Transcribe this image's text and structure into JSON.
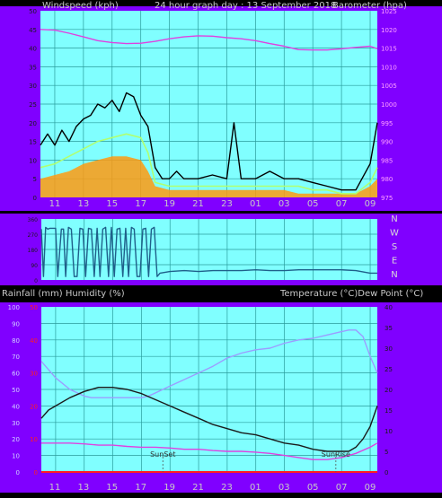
{
  "colors": {
    "background": "#000000",
    "plot_bg": "#80ffff",
    "panel_bg": "#8000ff",
    "grid": "#2a9c9c",
    "gust": "#000000",
    "average_wind": "#b0ff70",
    "wind_fill": "#ff9a10",
    "barometer": "#e040e0",
    "direction": "#1f5f8a",
    "rainfall": "#ff1f1f",
    "humidity": "#9c9cff",
    "temperature": "#1a1a1a",
    "dew_point": "#e040e0"
  },
  "header": {
    "left_title": "Windspeed (kph)",
    "center_title": "24 hour graph day : 13 September 2018",
    "right_title": "Barometer (hpa)"
  },
  "middle_header": {
    "left_title": "Rainfall (mm)  Humidity (%)",
    "right_title": "Temperature (°C)Dew Point (°C)"
  },
  "x_ticks": [
    "11",
    "13",
    "15",
    "17",
    "19",
    "21",
    "23",
    "01",
    "03",
    "05",
    "07",
    "09"
  ],
  "chart_data": [
    {
      "type": "line",
      "x_unit": "hours from start (10:00 13 Sep 2018)",
      "xlim": [
        0,
        23.5
      ],
      "y_left_ticks": [
        "0",
        "5",
        "10",
        "15",
        "20",
        "25",
        "30",
        "35",
        "40",
        "45",
        "50"
      ],
      "y_right_ticks": [
        "975",
        "980",
        "985",
        "990",
        "995",
        "1000",
        "1005",
        "1010",
        "1015",
        "1020",
        "1025"
      ],
      "ylim_left": [
        0,
        50
      ],
      "ylim_right": [
        975,
        1025
      ],
      "series": [
        {
          "role": "gust",
          "x": [
            0,
            0.5,
            1,
            1.5,
            2,
            2.5,
            3,
            3.5,
            4,
            4.5,
            5,
            5.5,
            6,
            6.5,
            7,
            7.5,
            8,
            8.5,
            9,
            9.5,
            10,
            11,
            12,
            13,
            13.5,
            14,
            15,
            16,
            17,
            18,
            19,
            20,
            21,
            22,
            23,
            23.5
          ],
          "y": [
            14,
            17,
            14,
            18,
            15,
            19,
            21,
            22,
            25,
            24,
            26,
            23,
            28,
            27,
            22,
            19,
            8,
            5,
            5,
            7,
            5,
            5,
            6,
            5,
            20,
            5,
            5,
            7,
            5,
            5,
            4,
            3,
            2,
            2,
            9,
            20
          ]
        },
        {
          "role": "average",
          "x": [
            0,
            1,
            2,
            3,
            4,
            5,
            6,
            7,
            7.5,
            8,
            9,
            10,
            11,
            12,
            13,
            14,
            15,
            16,
            17,
            18,
            19,
            20,
            21,
            22,
            23,
            23.5
          ],
          "y": [
            8,
            9,
            11,
            13,
            15,
            16,
            17,
            16,
            12,
            4,
            3,
            3,
            3,
            3,
            3,
            3,
            3,
            3,
            3,
            3,
            2,
            2,
            1,
            1,
            4,
            8
          ]
        },
        {
          "role": "average-fill",
          "x": [
            0,
            1,
            2,
            3,
            4,
            5,
            6,
            7,
            7.5,
            8,
            9,
            10,
            11,
            12,
            13,
            14,
            15,
            16,
            17,
            18,
            19,
            20,
            21,
            22,
            23,
            23.5
          ],
          "y": [
            5,
            6,
            7,
            9,
            10,
            11,
            11,
            10,
            7,
            3,
            2,
            2,
            2,
            2,
            2,
            2,
            2,
            2,
            2,
            1,
            1,
            1,
            1,
            1,
            3,
            5
          ]
        },
        {
          "role": "barometer",
          "axis": "right",
          "x": [
            0,
            1,
            2,
            3,
            4,
            5,
            6,
            7,
            8,
            9,
            10,
            11,
            12,
            13,
            14,
            15,
            16,
            17,
            18,
            19,
            20,
            21,
            22,
            23,
            23.5
          ],
          "y": [
            1020,
            1019.8,
            1019,
            1018,
            1017,
            1016.5,
            1016.2,
            1016.3,
            1016.8,
            1017.5,
            1018,
            1018.3,
            1018.2,
            1017.8,
            1017.5,
            1017,
            1016.2,
            1015.5,
            1014.6,
            1014.5,
            1014.5,
            1014.8,
            1015.2,
            1015.5,
            1014.8
          ]
        }
      ]
    },
    {
      "type": "line",
      "x_unit": "hours from start (10:00 13 Sep 2018)",
      "xlim": [
        0,
        23.5
      ],
      "y_left_ticks": [
        "0",
        "90",
        "180",
        "270",
        "360"
      ],
      "y_right_ticks": [
        "N",
        "W",
        "S",
        "E",
        "N"
      ],
      "ylim": [
        0,
        360
      ],
      "series": [
        {
          "role": "wind-direction",
          "x": [
            0,
            0.15,
            0.3,
            0.45,
            0.6,
            1.0,
            1.15,
            1.4,
            1.55,
            1.7,
            1.9,
            2.1,
            2.3,
            2.5,
            2.7,
            2.9,
            3.1,
            3.3,
            3.5,
            3.7,
            3.9,
            4.1,
            4.3,
            4.5,
            4.7,
            4.9,
            5.1,
            5.3,
            5.5,
            5.7,
            5.9,
            6.1,
            6.3,
            6.5,
            6.7,
            6.9,
            7.1,
            7.3,
            7.5,
            7.7,
            7.9,
            8.1,
            8.3,
            9,
            10,
            11,
            12,
            13,
            14,
            15,
            16,
            17,
            18,
            19,
            20,
            21,
            22,
            23,
            23.5
          ],
          "y": [
            300,
            20,
            310,
            300,
            305,
            305,
            20,
            300,
            300,
            20,
            310,
            300,
            20,
            20,
            305,
            300,
            20,
            305,
            300,
            20,
            305,
            20,
            300,
            310,
            20,
            310,
            20,
            300,
            305,
            20,
            305,
            20,
            310,
            300,
            20,
            20,
            300,
            305,
            20,
            300,
            310,
            20,
            40,
            50,
            55,
            50,
            55,
            55,
            55,
            60,
            55,
            55,
            60,
            60,
            60,
            60,
            55,
            40,
            40
          ]
        }
      ]
    },
    {
      "type": "line",
      "x_unit": "hours from start (10:00 13 Sep 2018)",
      "xlim": [
        0,
        23.5
      ],
      "y_left_ticks": [
        "0",
        "10",
        "20",
        "30",
        "40",
        "50",
        "60",
        "70",
        "80",
        "90",
        "100"
      ],
      "y_inner_ticks": [
        "0",
        "10",
        "20",
        "30",
        "40",
        "50"
      ],
      "y_right_ticks": [
        "0",
        "5",
        "10",
        "15",
        "20",
        "25",
        "30",
        "35",
        "40"
      ],
      "ylim_humidity": [
        0,
        100
      ],
      "ylim_rain": [
        0,
        50
      ],
      "ylim_temperature": [
        0,
        40
      ],
      "annotations": [
        {
          "text": "SunSet",
          "x": 8.5
        },
        {
          "text": "SunRise",
          "x": 20.6
        }
      ],
      "series": [
        {
          "role": "rainfall",
          "axis": "rain",
          "x": [
            0,
            23.5
          ],
          "y": [
            0,
            0
          ]
        },
        {
          "role": "humidity",
          "axis": "humidity",
          "x": [
            0,
            0.5,
            1,
            2,
            3,
            3.5,
            4,
            5,
            6,
            7,
            7.5,
            8,
            9,
            10,
            11,
            12,
            13,
            14,
            15,
            16,
            17,
            18,
            19,
            20,
            21,
            21.5,
            22,
            22.5,
            23,
            23.5
          ],
          "y": [
            67,
            62,
            57,
            50,
            46,
            45,
            45,
            45,
            45,
            45,
            46,
            48,
            52,
            56,
            60,
            64,
            69,
            72,
            74,
            75,
            78,
            80,
            81,
            83,
            85,
            86,
            86,
            82,
            70,
            60
          ]
        },
        {
          "role": "temperature",
          "axis": "temperature",
          "x": [
            0,
            0.5,
            1,
            2,
            3,
            4,
            5,
            6,
            7,
            8,
            9,
            10,
            11,
            12,
            13,
            14,
            15,
            16,
            17,
            18,
            19,
            20,
            21,
            21.5,
            22,
            22.5,
            23,
            23.5
          ],
          "y": [
            13,
            15,
            16,
            18,
            19.5,
            20.5,
            20.5,
            20,
            19,
            17.5,
            16,
            14.5,
            13,
            11.5,
            10.5,
            9.5,
            9,
            8,
            7,
            6.5,
            5.5,
            5,
            5,
            5,
            6,
            8,
            11,
            16
          ]
        },
        {
          "role": "dew-point",
          "axis": "temperature",
          "x": [
            0,
            1,
            2,
            3,
            4,
            5,
            6,
            7,
            8,
            9,
            10,
            11,
            12,
            13,
            14,
            15,
            16,
            17,
            18,
            19,
            20,
            21,
            22,
            23,
            23.5
          ],
          "y": [
            7,
            7,
            7,
            6.8,
            6.5,
            6.5,
            6.2,
            6,
            6,
            5.8,
            5.5,
            5.5,
            5.2,
            5,
            5,
            4.8,
            4.5,
            4,
            3.5,
            3,
            3,
            3.5,
            4.5,
            6,
            7
          ]
        }
      ]
    }
  ]
}
